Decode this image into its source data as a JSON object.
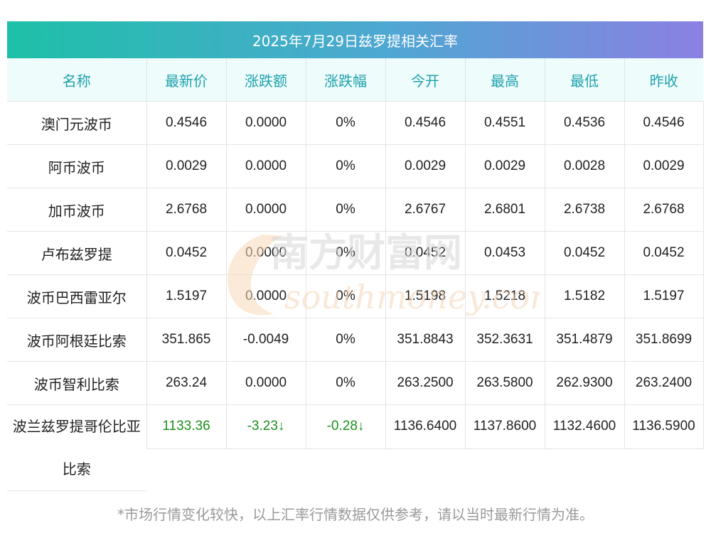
{
  "title": "2025年7月29日兹罗提相关汇率",
  "headers": [
    "名称",
    "最新价",
    "涨跌额",
    "涨跌幅",
    "今开",
    "最高",
    "最低",
    "昨收"
  ],
  "rows": [
    {
      "name": "澳门元波币",
      "latest": "0.4546",
      "change": "0.0000",
      "pct": "0%",
      "open": "0.4546",
      "high": "0.4551",
      "low": "0.4536",
      "prev": "0.4546"
    },
    {
      "name": "阿币波币",
      "latest": "0.0029",
      "change": "0.0000",
      "pct": "0%",
      "open": "0.0029",
      "high": "0.0029",
      "low": "0.0028",
      "prev": "0.0029"
    },
    {
      "name": "加币波币",
      "latest": "2.6768",
      "change": "0.0000",
      "pct": "0%",
      "open": "2.6767",
      "high": "2.6801",
      "low": "2.6738",
      "prev": "2.6768"
    },
    {
      "name": "卢布兹罗提",
      "latest": "0.0452",
      "change": "0.0000",
      "pct": "0%",
      "open": "0.0452",
      "high": "0.0453",
      "low": "0.0452",
      "prev": "0.0452"
    },
    {
      "name": "波币巴西雷亚尔",
      "latest": "1.5197",
      "change": "0.0000",
      "pct": "0%",
      "open": "1.5198",
      "high": "1.5218",
      "low": "1.5182",
      "prev": "1.5197"
    },
    {
      "name": "波币阿根廷比索",
      "latest": "351.865",
      "change": "-0.0049",
      "pct": "0%",
      "open": "351.8843",
      "high": "352.3631",
      "low": "351.4879",
      "prev": "351.8699"
    },
    {
      "name": "波币智利比索",
      "latest": "263.24",
      "change": "0.0000",
      "pct": "0%",
      "open": "263.2500",
      "high": "263.5800",
      "low": "262.9300",
      "prev": "263.2400"
    },
    {
      "name": "波兰兹罗提哥伦比亚比索",
      "latest": "1133.36",
      "change": "-3.23↓",
      "pct": "-0.28↓",
      "open": "1136.6400",
      "high": "1137.8600",
      "low": "1132.4600",
      "prev": "1136.5900"
    }
  ],
  "down_color": "#1c8f1c",
  "watermark": {
    "cn": "南方财富网",
    "en": "southmoney.com"
  },
  "footnote": "*市场行情变化较快，以上汇率行情数据仅供参考，请以当时最新行情为准。"
}
